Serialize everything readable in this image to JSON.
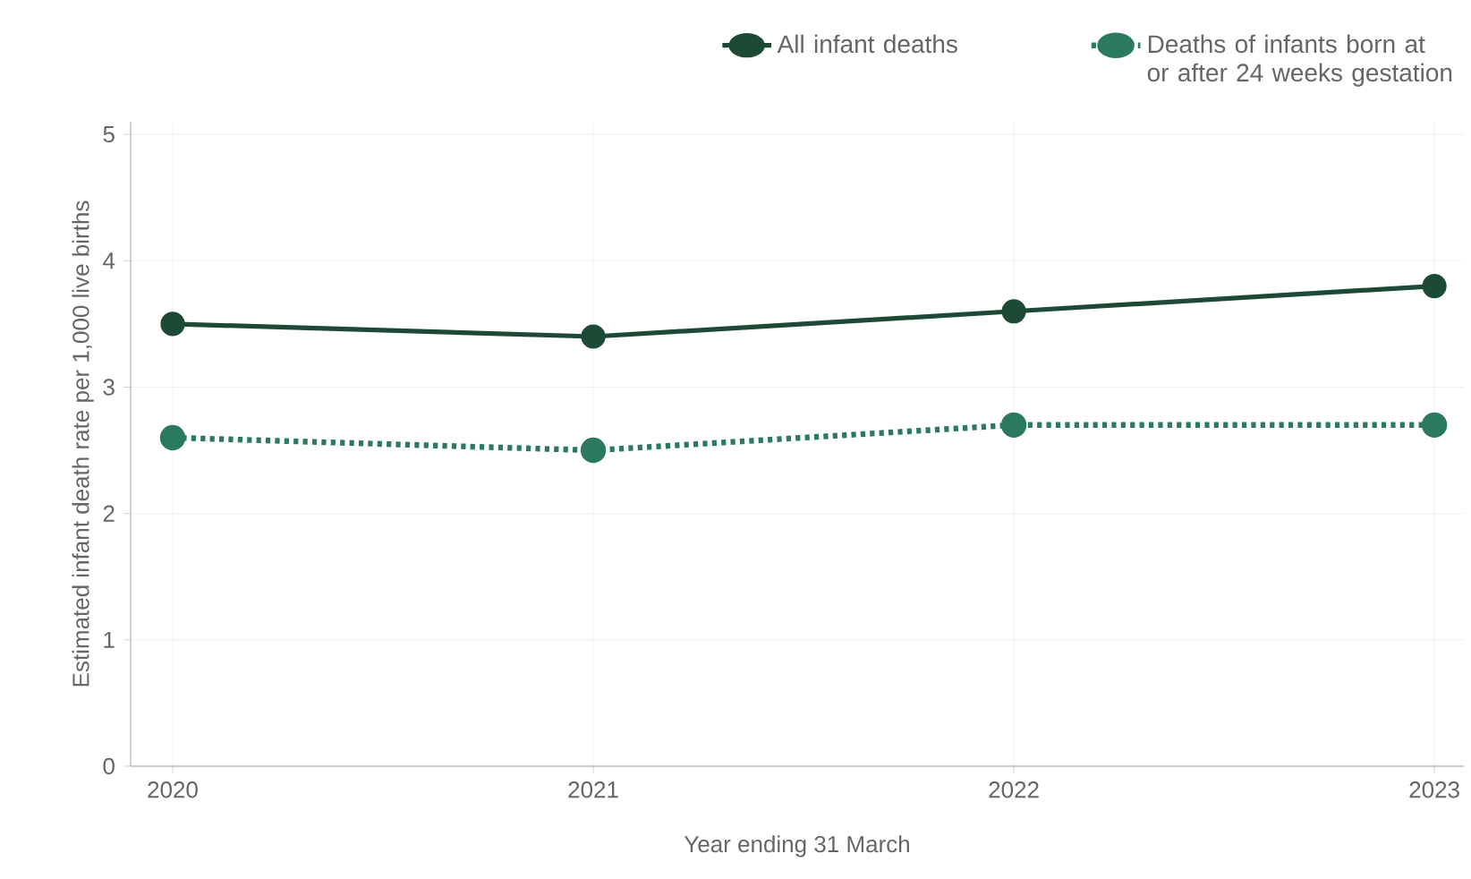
{
  "chart_data": {
    "type": "line",
    "xlabel": "Year ending 31 March",
    "ylabel": "Estimated infant death rate per 1,000 live births",
    "categories": [
      "2020",
      "2021",
      "2022",
      "2023"
    ],
    "series": [
      {
        "name": "All infant deaths",
        "color": "#1d4a36",
        "values": [
          3.5,
          3.4,
          3.6,
          3.8
        ],
        "line_style": "solid"
      },
      {
        "name": "Deaths of infants born at or after 24 weeks gestation",
        "color": "#2c7a5e",
        "values": [
          2.6,
          2.5,
          2.7,
          2.7
        ],
        "line_style": "dotted"
      }
    ],
    "ylim": [
      0,
      5.1
    ],
    "yticks": [
      0,
      1,
      2,
      3,
      4,
      5
    ],
    "grid": true,
    "legend": "top right",
    "marker": "circle"
  }
}
